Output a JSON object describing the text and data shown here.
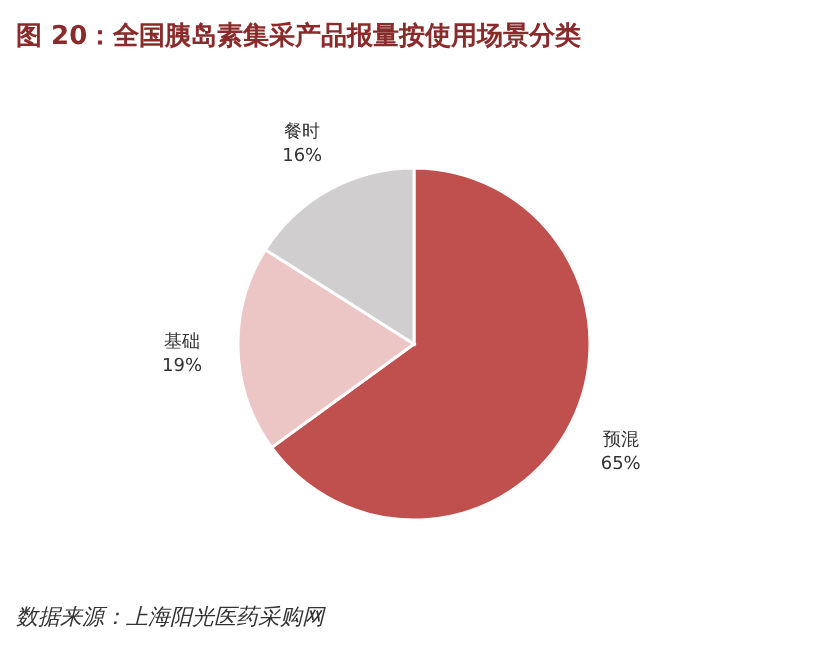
{
  "chart_data": {
    "type": "pie",
    "title": "图 20：全国胰岛素集采产品报量按使用场景分类",
    "categories": [
      "预混",
      "基础",
      "餐时"
    ],
    "values": [
      65,
      19,
      16
    ],
    "colors": [
      "#c0504d",
      "#ecc6c4",
      "#d0cece"
    ],
    "value_labels": [
      "65%",
      "19%",
      "16%"
    ],
    "annotations": [
      "数据来源：上海阳光医药采购网"
    ]
  }
}
